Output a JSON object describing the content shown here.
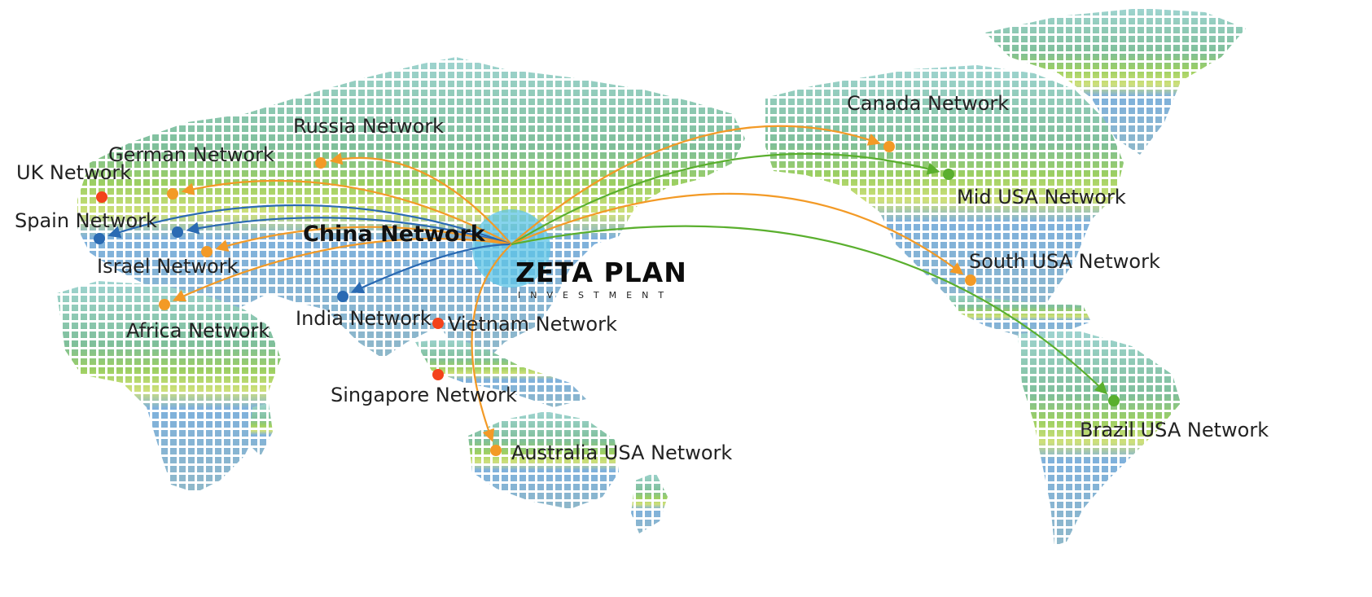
{
  "hub": {
    "label": "China Network",
    "color": "#5ec4e6"
  },
  "brand": {
    "name": "ZETA PLAN",
    "tagline": "INVESTMENT"
  },
  "colors": {
    "orange": "#f39a26",
    "blue": "#2a6ab3",
    "green": "#5aaf2e",
    "red": "#f4431b"
  },
  "networks": [
    {
      "id": "uk",
      "label": "UK Network",
      "color": "red",
      "route": false
    },
    {
      "id": "german",
      "label": "German Network",
      "color": "orange",
      "route": true
    },
    {
      "id": "russia",
      "label": "Russia Network",
      "color": "orange",
      "route": true
    },
    {
      "id": "spain",
      "label": "Spain Network",
      "color": "blue",
      "route": true
    },
    {
      "id": "europe2",
      "label": "",
      "color": "blue",
      "route": true
    },
    {
      "id": "israel",
      "label": "Israel Network",
      "color": "orange",
      "route": true
    },
    {
      "id": "africa",
      "label": "Africa Network",
      "color": "orange",
      "route": true
    },
    {
      "id": "india",
      "label": "India Network",
      "color": "blue",
      "route": true
    },
    {
      "id": "vietnam",
      "label": "Vietnam Network",
      "color": "red",
      "route": false
    },
    {
      "id": "singapore",
      "label": "Singapore Network",
      "color": "red",
      "route": false
    },
    {
      "id": "australia",
      "label": "Australia USA Network",
      "color": "orange",
      "route": true
    },
    {
      "id": "canada",
      "label": "Canada Network",
      "color": "orange",
      "route": true
    },
    {
      "id": "midusa",
      "label": "Mid USA Network",
      "color": "green",
      "route": true
    },
    {
      "id": "southusa",
      "label": "South USA Network",
      "color": "orange",
      "route": true
    },
    {
      "id": "brazil",
      "label": "Brazil USA Network",
      "color": "green",
      "route": true
    }
  ]
}
